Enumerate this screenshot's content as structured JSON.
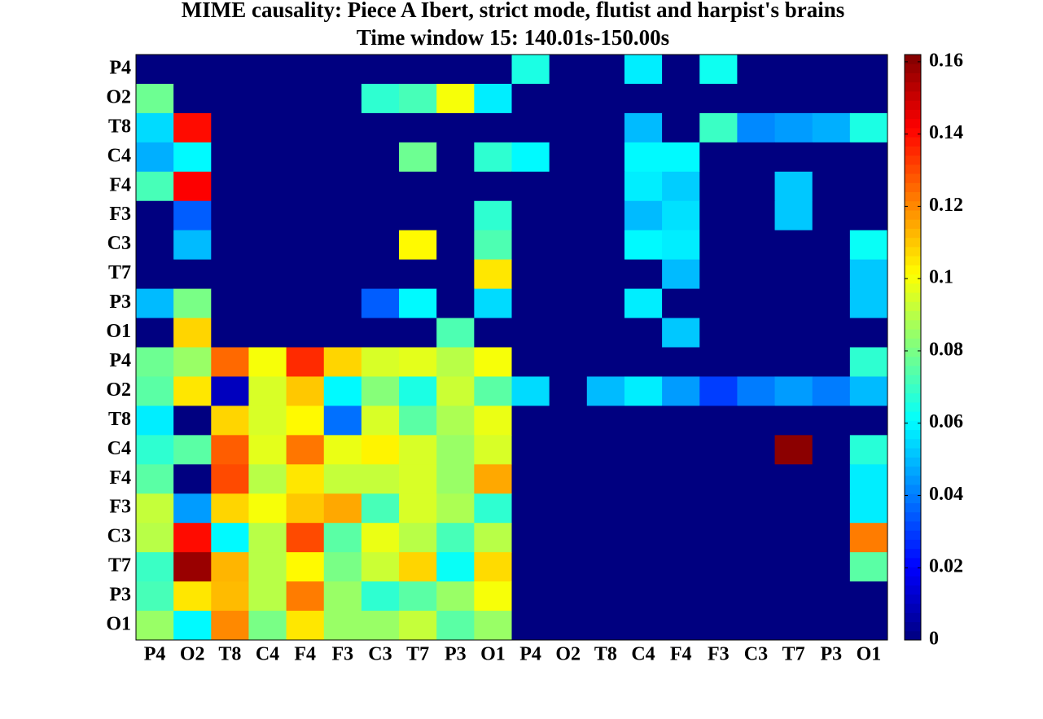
{
  "chart_data": {
    "type": "heatmap",
    "title": "MIME causality: Piece A  Ibert,  strict mode, flutist and harpist's brains",
    "subtitle": "Time window 15: 140.01s-150.00s",
    "x_categories": [
      "P4",
      "O2",
      "T8",
      "C4",
      "F4",
      "F3",
      "C3",
      "T7",
      "P3",
      "O1",
      "P4",
      "O2",
      "T8",
      "C4",
      "F4",
      "F3",
      "C3",
      "T7",
      "P3",
      "O1"
    ],
    "y_categories": [
      "P4",
      "O2",
      "T8",
      "C4",
      "F4",
      "F3",
      "C3",
      "T7",
      "P3",
      "O1",
      "P4",
      "O2",
      "T8",
      "C4",
      "F4",
      "F3",
      "C3",
      "T7",
      "P3",
      "O1"
    ],
    "values": [
      [
        0,
        0,
        0,
        0,
        0,
        0,
        0,
        0,
        0,
        0,
        0.065,
        0,
        0,
        0.058,
        0,
        0.063,
        0,
        0,
        0,
        0
      ],
      [
        0.078,
        0,
        0,
        0,
        0,
        0,
        0.068,
        0.072,
        0.1,
        0.058,
        0,
        0,
        0,
        0,
        0,
        0,
        0,
        0,
        0,
        0
      ],
      [
        0.055,
        0.14,
        0,
        0,
        0,
        0,
        0,
        0,
        0,
        0,
        0,
        0,
        0,
        0.05,
        0,
        0.07,
        0.042,
        0.045,
        0.048,
        0.065
      ],
      [
        0.048,
        0.06,
        0,
        0,
        0,
        0,
        0,
        0.078,
        0,
        0.068,
        0.06,
        0,
        0,
        0.06,
        0.06,
        0,
        0,
        0,
        0,
        0
      ],
      [
        0.072,
        0.142,
        0,
        0,
        0,
        0,
        0,
        0,
        0,
        0,
        0,
        0,
        0,
        0.058,
        0.053,
        0,
        0,
        0.052,
        0,
        0
      ],
      [
        0,
        0.035,
        0,
        0,
        0,
        0,
        0,
        0,
        0,
        0.068,
        0,
        0,
        0,
        0.05,
        0.056,
        0,
        0,
        0.052,
        0,
        0
      ],
      [
        0,
        0.05,
        0,
        0,
        0,
        0,
        0,
        0.102,
        0,
        0.073,
        0,
        0,
        0,
        0.06,
        0.058,
        0,
        0,
        0,
        0,
        0.062
      ],
      [
        0,
        0,
        0,
        0,
        0,
        0,
        0,
        0,
        0,
        0.105,
        0,
        0,
        0,
        0,
        0.05,
        0,
        0,
        0,
        0,
        0.052
      ],
      [
        0.05,
        0.08,
        0,
        0,
        0,
        0,
        0.035,
        0.06,
        0,
        0.055,
        0,
        0,
        0,
        0.058,
        0,
        0,
        0,
        0,
        0,
        0.052
      ],
      [
        0,
        0.108,
        0,
        0,
        0,
        0,
        0,
        0,
        0.073,
        0,
        0,
        0,
        0,
        0,
        0.052,
        0,
        0,
        0,
        0,
        0
      ],
      [
        0.078,
        0.085,
        0.125,
        0.1,
        0.135,
        0.108,
        0.095,
        0.097,
        0.09,
        0.1,
        0,
        0,
        0,
        0,
        0,
        0,
        0,
        0,
        0,
        0.068
      ],
      [
        0.075,
        0.105,
        0.01,
        0.095,
        0.11,
        0.06,
        0.082,
        0.065,
        0.093,
        0.075,
        0.055,
        0,
        0.05,
        0.058,
        0.045,
        0.03,
        0.04,
        0.045,
        0.04,
        0.05
      ],
      [
        0.058,
        0,
        0.108,
        0.095,
        0.102,
        0.038,
        0.095,
        0.075,
        0.088,
        0.098,
        0,
        0,
        0,
        0,
        0,
        0,
        0,
        0,
        0,
        0
      ],
      [
        0.068,
        0.075,
        0.127,
        0.097,
        0.123,
        0.098,
        0.103,
        0.095,
        0.085,
        0.095,
        0,
        0,
        0,
        0,
        0,
        0,
        0,
        0.16,
        0,
        0.067
      ],
      [
        0.075,
        0,
        0.13,
        0.09,
        0.105,
        0.092,
        0.092,
        0.095,
        0.085,
        0.115,
        0,
        0,
        0,
        0,
        0,
        0,
        0,
        0,
        0,
        0.058
      ],
      [
        0.092,
        0.045,
        0.108,
        0.1,
        0.11,
        0.115,
        0.072,
        0.095,
        0.088,
        0.068,
        0,
        0,
        0,
        0,
        0,
        0,
        0,
        0,
        0,
        0.058
      ],
      [
        0.09,
        0.14,
        0.06,
        0.09,
        0.13,
        0.075,
        0.098,
        0.09,
        0.072,
        0.09,
        0,
        0,
        0,
        0,
        0,
        0,
        0,
        0,
        0,
        0.122
      ],
      [
        0.07,
        0.158,
        0.113,
        0.09,
        0.102,
        0.08,
        0.093,
        0.108,
        0.062,
        0.107,
        0,
        0,
        0,
        0,
        0,
        0,
        0,
        0,
        0,
        0.075
      ],
      [
        0.072,
        0.105,
        0.112,
        0.09,
        0.122,
        0.085,
        0.068,
        0.075,
        0.085,
        0.1,
        0,
        0,
        0,
        0,
        0,
        0,
        0,
        0,
        0,
        0
      ],
      [
        0.085,
        0.06,
        0.12,
        0.08,
        0.105,
        0.085,
        0.085,
        0.092,
        0.075,
        0.085,
        0,
        0,
        0,
        0,
        0,
        0,
        0,
        0,
        0,
        0
      ]
    ],
    "colormap": "jet",
    "clim": [
      0,
      0.162
    ],
    "colorbar_ticks": [
      0,
      0.02,
      0.04,
      0.06,
      0.08,
      0.1,
      0.12,
      0.14,
      0.16
    ]
  }
}
